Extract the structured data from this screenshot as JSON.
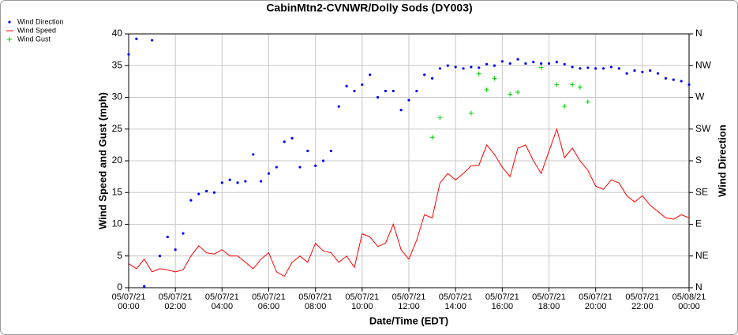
{
  "chart_data": {
    "type": "line",
    "title": "CabinMtn2-CVNWR/Dolly Sods (DY003)",
    "xlabel": "Date/Time (EDT)",
    "ylabel": "Wind Speed and Gust (mph)",
    "y2label": "Wind Direction",
    "legend": "top-left",
    "grid": true,
    "xlim": [
      "05/07/21 00:00",
      "05/08/21 00:00"
    ],
    "xticks": [
      "05/07/21 00:00",
      "05/07/21 02:00",
      "05/07/21 04:00",
      "05/07/21 06:00",
      "05/07/21 08:00",
      "05/07/21 10:00",
      "05/07/21 12:00",
      "05/07/21 14:00",
      "05/07/21 16:00",
      "05/07/21 18:00",
      "05/07/21 20:00",
      "05/07/21 22:00",
      "05/08/21 00:00"
    ],
    "ylim": [
      0,
      40
    ],
    "yticks": [
      0,
      5,
      10,
      15,
      20,
      25,
      30,
      35,
      40
    ],
    "y2lim": [
      0,
      360
    ],
    "y2ticks": [
      {
        "value": 0,
        "label": "N"
      },
      {
        "value": 45,
        "label": "NE"
      },
      {
        "value": 90,
        "label": "E"
      },
      {
        "value": 135,
        "label": "SE"
      },
      {
        "value": 180,
        "label": "S"
      },
      {
        "value": 225,
        "label": "SW"
      },
      {
        "value": 270,
        "label": "W"
      },
      {
        "value": 315,
        "label": "NW"
      },
      {
        "value": 360,
        "label": "N"
      }
    ],
    "x": [
      "05/07/21 00:00",
      "05/07/21 00:20",
      "05/07/21 00:40",
      "05/07/21 01:00",
      "05/07/21 01:20",
      "05/07/21 01:40",
      "05/07/21 02:00",
      "05/07/21 02:20",
      "05/07/21 02:40",
      "05/07/21 03:00",
      "05/07/21 03:20",
      "05/07/21 03:40",
      "05/07/21 04:00",
      "05/07/21 04:20",
      "05/07/21 04:40",
      "05/07/21 05:00",
      "05/07/21 05:20",
      "05/07/21 05:40",
      "05/07/21 06:00",
      "05/07/21 06:20",
      "05/07/21 06:40",
      "05/07/21 07:00",
      "05/07/21 07:20",
      "05/07/21 07:40",
      "05/07/21 08:00",
      "05/07/21 08:20",
      "05/07/21 08:40",
      "05/07/21 09:00",
      "05/07/21 09:20",
      "05/07/21 09:40",
      "05/07/21 10:00",
      "05/07/21 10:20",
      "05/07/21 10:40",
      "05/07/21 11:00",
      "05/07/21 11:20",
      "05/07/21 11:40",
      "05/07/21 12:00",
      "05/07/21 12:20",
      "05/07/21 12:40",
      "05/07/21 13:00",
      "05/07/21 13:20",
      "05/07/21 13:40",
      "05/07/21 14:00",
      "05/07/21 14:20",
      "05/07/21 14:40",
      "05/07/21 15:00",
      "05/07/21 15:20",
      "05/07/21 15:40",
      "05/07/21 16:00",
      "05/07/21 16:20",
      "05/07/21 16:40",
      "05/07/21 17:00",
      "05/07/21 17:20",
      "05/07/21 17:40",
      "05/07/21 18:00",
      "05/07/21 18:20",
      "05/07/21 18:40",
      "05/07/21 19:00",
      "05/07/21 19:20",
      "05/07/21 19:40",
      "05/07/21 20:00",
      "05/07/21 20:20",
      "05/07/21 20:40",
      "05/07/21 21:00",
      "05/07/21 21:20",
      "05/07/21 21:40",
      "05/07/21 22:00",
      "05/07/21 22:20",
      "05/07/21 22:40",
      "05/07/21 23:00",
      "05/07/21 23:20",
      "05/07/21 23:40",
      "05/08/21 00:00"
    ],
    "series": [
      {
        "name": "Wind Direction",
        "color": "#0000ff",
        "marker": "dot",
        "axis": "y2",
        "values": [
          331,
          353,
          2,
          351,
          45,
          72,
          54,
          77,
          124,
          133,
          137,
          135,
          149,
          153,
          149,
          151,
          189,
          151,
          162,
          171,
          207,
          212,
          171,
          194,
          173,
          180,
          194,
          257,
          286,
          279,
          288,
          302,
          270,
          279,
          279,
          252,
          266,
          279,
          302,
          297,
          311,
          315,
          313,
          311,
          313,
          312,
          317,
          315,
          321,
          318,
          324,
          318,
          320,
          318,
          318,
          320,
          317,
          313,
          311,
          312,
          311,
          311,
          313,
          311,
          304,
          308,
          306,
          308,
          304,
          297,
          295,
          293,
          288
        ]
      },
      {
        "name": "Wind Speed",
        "color": "#ff0000",
        "marker": "line",
        "values": [
          3.8,
          3,
          4.5,
          2.5,
          3,
          2.8,
          2.5,
          2.8,
          5,
          6.6,
          5.5,
          5.3,
          6,
          5,
          5,
          4,
          3,
          4.5,
          5.5,
          2.5,
          1.8,
          4,
          5,
          4,
          7,
          5.8,
          5.5,
          4,
          5,
          3.2,
          8.5,
          8,
          6.5,
          7,
          10,
          6,
          4.5,
          7.5,
          11.5,
          11,
          16.5,
          18,
          17,
          18,
          19.2,
          19.3,
          22.5,
          21,
          19,
          17.5,
          22,
          22.5,
          20,
          18,
          21.5,
          25,
          20.5,
          22,
          20,
          18.5,
          16,
          15.5,
          17,
          16.5,
          14.5,
          13.5,
          14.5,
          13,
          12,
          11,
          10.8,
          11.5,
          11
        ]
      },
      {
        "name": "Wind Gust",
        "color": "#00cc00",
        "marker": "plus",
        "values": [
          null,
          null,
          null,
          null,
          null,
          null,
          null,
          null,
          null,
          null,
          null,
          null,
          null,
          null,
          null,
          null,
          null,
          null,
          null,
          null,
          null,
          null,
          null,
          null,
          null,
          null,
          null,
          null,
          null,
          null,
          null,
          null,
          null,
          null,
          null,
          null,
          null,
          null,
          null,
          23.7,
          26.8,
          null,
          null,
          null,
          27.5,
          33.7,
          31.2,
          33,
          null,
          30.5,
          30.8,
          null,
          null,
          34.7,
          null,
          32,
          28.6,
          32,
          31.6,
          29.3,
          null,
          null,
          null,
          null,
          null,
          null,
          null,
          null,
          null,
          null,
          null,
          null,
          null
        ]
      }
    ]
  }
}
